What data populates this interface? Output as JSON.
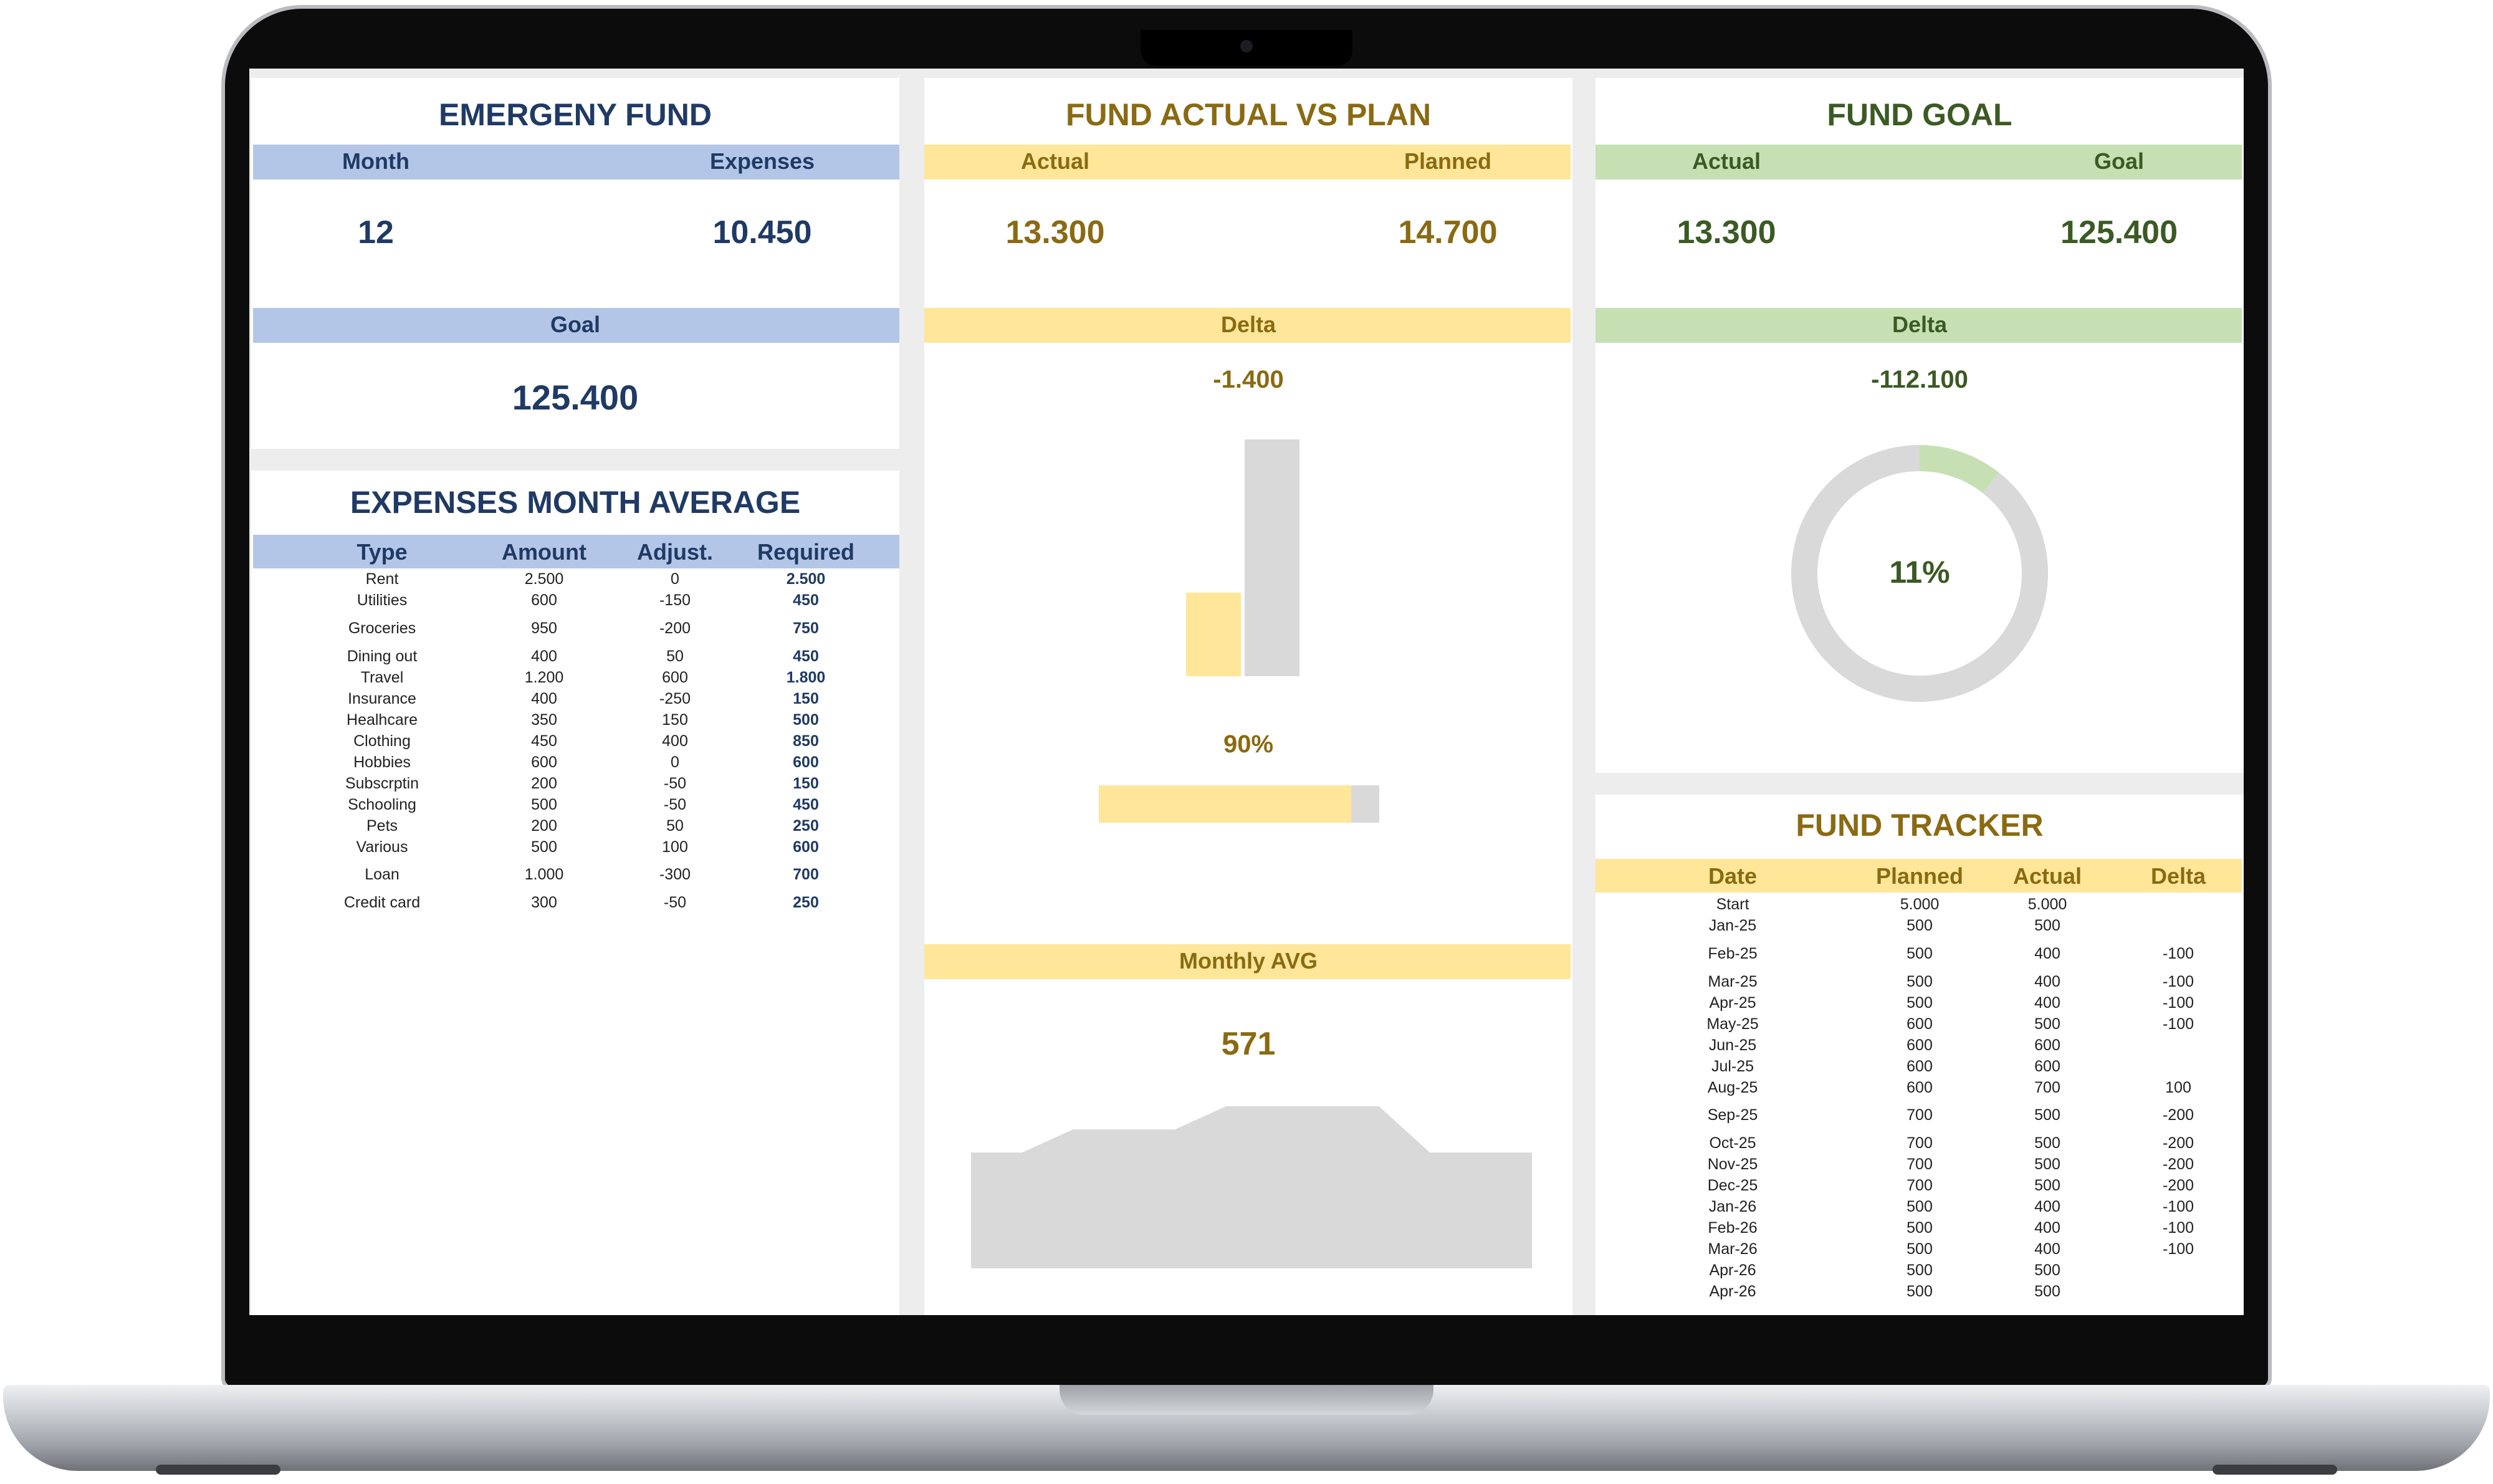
{
  "emergency": {
    "title": "EMERGENY FUND",
    "month_label": "Month",
    "expenses_label": "Expenses",
    "month_value": "12",
    "expenses_value": "10.450",
    "goal_label": "Goal",
    "goal_value": "125.400"
  },
  "expenses_avg": {
    "title": "EXPENSES MONTH AVERAGE",
    "columns": [
      "Type",
      "Amount",
      "Adjust.",
      "Required"
    ],
    "rows": [
      [
        "Rent",
        "2.500",
        "0",
        "2.500"
      ],
      [
        "Utilities",
        "600",
        "-150",
        "450"
      ],
      [
        "Groceries",
        "950",
        "-200",
        "750"
      ],
      [
        "Dining out",
        "400",
        "50",
        "450"
      ],
      [
        "Travel",
        "1.200",
        "600",
        "1.800"
      ],
      [
        "Insurance",
        "400",
        "-250",
        "150"
      ],
      [
        "Healhcare",
        "350",
        "150",
        "500"
      ],
      [
        "Clothing",
        "450",
        "400",
        "850"
      ],
      [
        "Hobbies",
        "600",
        "0",
        "600"
      ],
      [
        "Subscrptin",
        "200",
        "-50",
        "150"
      ],
      [
        "Schooling",
        "500",
        "-50",
        "450"
      ],
      [
        "Pets",
        "200",
        "50",
        "250"
      ],
      [
        "Various",
        "500",
        "100",
        "600"
      ],
      [
        "Loan",
        "1.000",
        "-300",
        "700"
      ],
      [
        "Credit card",
        "300",
        "-50",
        "250"
      ]
    ]
  },
  "actual_vs_plan": {
    "title": "FUND ACTUAL VS PLAN",
    "actual_label": "Actual",
    "planned_label": "Planned",
    "actual_value": "13.300",
    "planned_value": "14.700",
    "delta_label": "Delta",
    "delta_value": "-1.400",
    "percent_label": "90%",
    "monthly_avg_label": "Monthly AVG",
    "monthly_avg_value": "571"
  },
  "fund_goal": {
    "title": "FUND GOAL",
    "actual_label": "Actual",
    "goal_label": "Goal",
    "actual_value": "13.300",
    "goal_value": "125.400",
    "delta_label": "Delta",
    "delta_value": "-112.100",
    "percent_label": "11%"
  },
  "tracker": {
    "title": "FUND TRACKER",
    "columns": [
      "Date",
      "Planned",
      "Actual",
      "Delta"
    ],
    "rows": [
      [
        "Start",
        "5.000",
        "5.000",
        ""
      ],
      [
        "Jan-25",
        "500",
        "500",
        ""
      ],
      [
        "Feb-25",
        "500",
        "400",
        "-100"
      ],
      [
        "Mar-25",
        "500",
        "400",
        "-100"
      ],
      [
        "Apr-25",
        "500",
        "400",
        "-100"
      ],
      [
        "May-25",
        "600",
        "500",
        "-100"
      ],
      [
        "Jun-25",
        "600",
        "600",
        ""
      ],
      [
        "Jul-25",
        "600",
        "600",
        ""
      ],
      [
        "Aug-25",
        "600",
        "700",
        "100"
      ],
      [
        "Sep-25",
        "700",
        "500",
        "-200"
      ],
      [
        "Oct-25",
        "700",
        "500",
        "-200"
      ],
      [
        "Nov-25",
        "700",
        "500",
        "-200"
      ],
      [
        "Dec-25",
        "700",
        "500",
        "-200"
      ],
      [
        "Jan-26",
        "500",
        "400",
        "-100"
      ],
      [
        "Feb-26",
        "500",
        "400",
        "-100"
      ],
      [
        "Mar-26",
        "500",
        "400",
        "-100"
      ],
      [
        "Apr-26",
        "500",
        "500",
        ""
      ],
      [
        "Apr-26",
        "500",
        "500",
        ""
      ]
    ]
  },
  "chart_data": [
    {
      "type": "bar",
      "categories": [
        "Actual",
        "Planned"
      ],
      "values": [
        13300,
        14700
      ],
      "colors": [
        "#ffe699",
        "#d9d9d9"
      ]
    },
    {
      "type": "bar",
      "orientation": "horizontal",
      "series": [
        {
          "values": [
            0.9
          ]
        }
      ],
      "colors": [
        "#ffe699",
        "#d9d9d9"
      ]
    },
    {
      "type": "pie",
      "style": "donut",
      "values": [
        13300,
        112100
      ],
      "colors": [
        "#c6e0b4",
        "#d9d9d9"
      ]
    },
    {
      "type": "area",
      "values": [
        500,
        500,
        600,
        600,
        600,
        700,
        700,
        700,
        700,
        500,
        500,
        500
      ],
      "colors": [
        "#d9d9d9"
      ]
    }
  ]
}
